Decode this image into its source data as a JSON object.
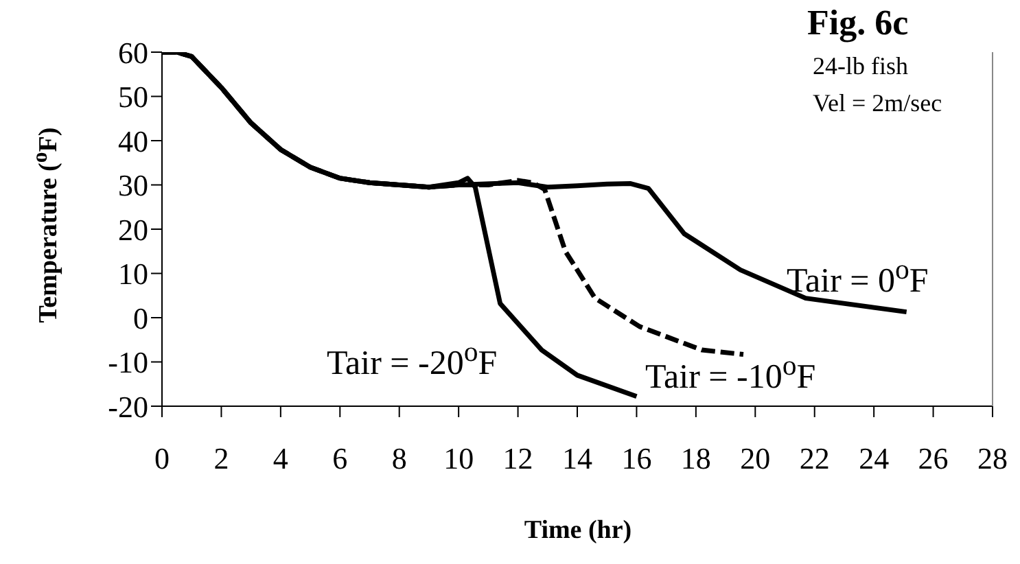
{
  "chart_data": {
    "type": "line",
    "title": "Fig. 6c",
    "xlabel": "Time (hr)",
    "ylabel": "Temperature ($^{o}$F)",
    "xlim": [
      0,
      28
    ],
    "xticks": [
      0,
      2,
      4,
      6,
      8,
      10,
      12,
      14,
      16,
      18,
      20,
      22,
      24,
      26,
      28
    ],
    "ylim": [
      -20,
      60
    ],
    "yticks": [
      -20,
      -10,
      0,
      10,
      20,
      30,
      40,
      50,
      60
    ],
    "marker": "none",
    "series": [
      {
        "color": "#000000",
        "line_style": "solid",
        "x": [
          0,
          0.5,
          1,
          2,
          3,
          4,
          5,
          6,
          7,
          8,
          9,
          10,
          12,
          13,
          14,
          15,
          15.8,
          16.4,
          17.6,
          19.5,
          21.7,
          25.1
        ],
        "values": [
          60,
          60,
          59,
          52,
          44,
          38,
          34,
          31.5,
          30.5,
          30,
          29.5,
          30,
          30.5,
          29.5,
          29.8,
          30.2,
          30.3,
          29.2,
          19,
          10.8,
          4.4,
          1.3
        ]
      },
      {
        "color": "#000000",
        "line_style": "dashed",
        "x": [
          0,
          0.5,
          1,
          2,
          3,
          4,
          5,
          6,
          7,
          8,
          9,
          10,
          11,
          12,
          12.5,
          12.9,
          13.6,
          14.6,
          16.1,
          18.2,
          19.6
        ],
        "values": [
          60,
          60,
          59,
          52,
          44,
          38,
          34,
          31.5,
          30.5,
          30,
          29.5,
          30,
          30,
          31,
          30.5,
          29,
          15,
          4.4,
          -2,
          -7.3,
          -8.3
        ]
      },
      {
        "color": "#000000",
        "line_style": "solid",
        "x": [
          0,
          0.5,
          1,
          2,
          3,
          4,
          5,
          6,
          7,
          8,
          9,
          10,
          10.3,
          10.56,
          11.4,
          12.8,
          14,
          16
        ],
        "values": [
          60,
          60,
          59,
          52,
          44,
          38,
          34,
          31.5,
          30.5,
          30,
          29.5,
          30.5,
          31.5,
          29.5,
          3.2,
          -7.3,
          -13,
          -17.8
        ]
      }
    ],
    "annotations": [
      "24-lb fish",
      "Vel = 2m/sec",
      "Tair = 0$^{o}$F",
      "Tair = -10$^{o}$F",
      "Tair = -20$^{o}$F"
    ]
  }
}
